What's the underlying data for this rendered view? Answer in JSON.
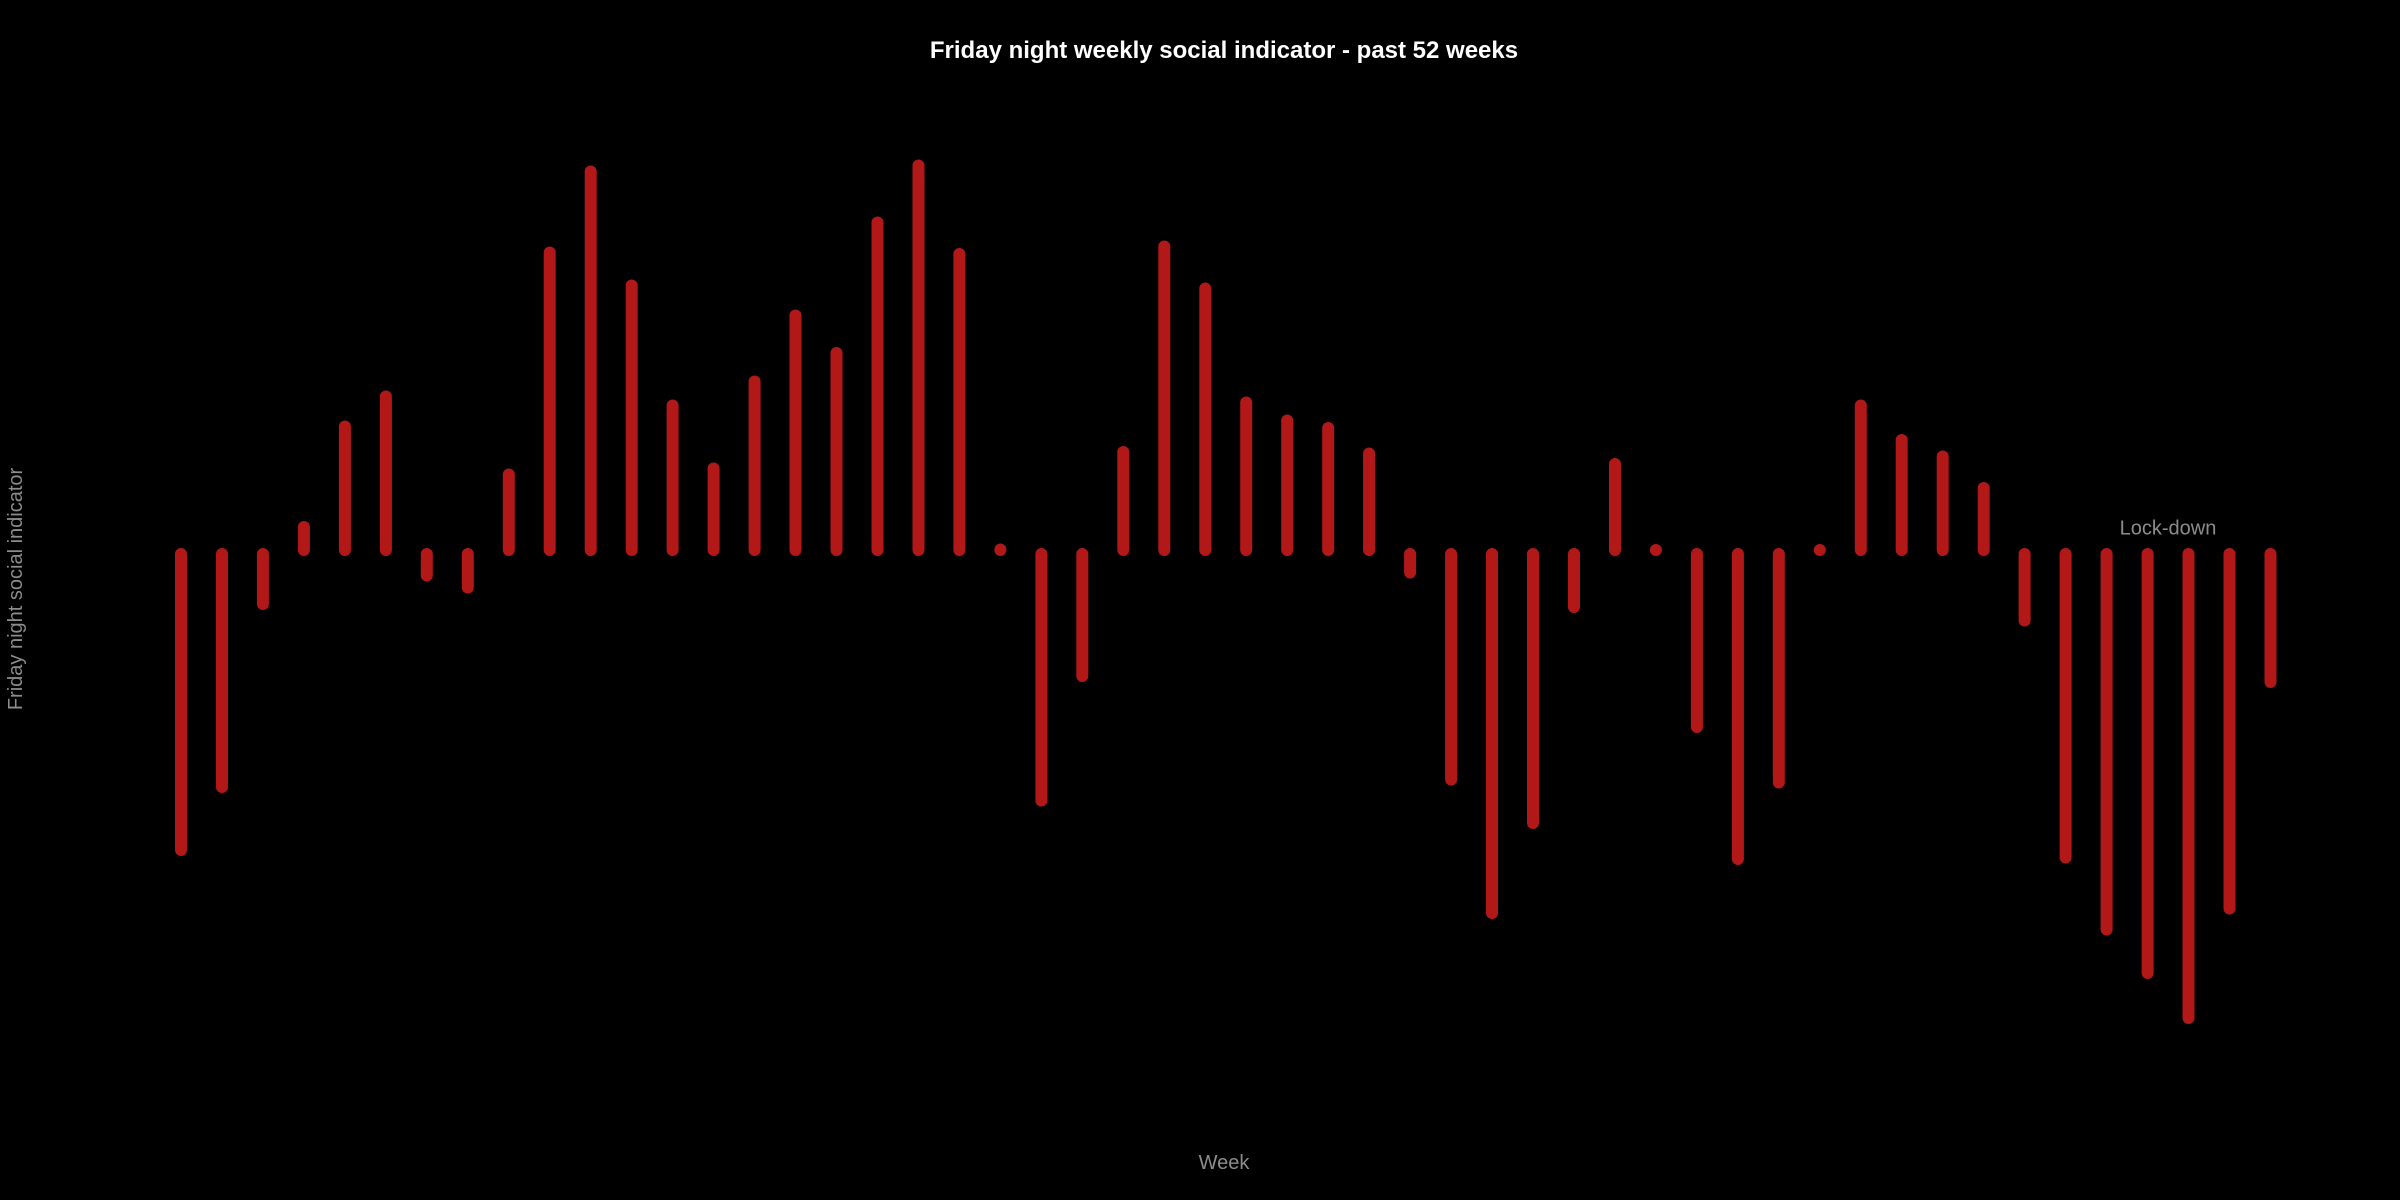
{
  "chart_data": {
    "type": "bar",
    "title": "Friday night weekly social indicator - past 52 weeks",
    "xlabel": "Week",
    "ylabel": "Friday night social indicator",
    "ylim": [
      -330,
      280
    ],
    "grid": false,
    "x": [
      1,
      2,
      3,
      4,
      5,
      6,
      7,
      8,
      9,
      10,
      11,
      12,
      13,
      14,
      15,
      16,
      17,
      18,
      19,
      20,
      21,
      22,
      23,
      24,
      25,
      26,
      27,
      28,
      29,
      30,
      31,
      32,
      33,
      34,
      35,
      36,
      37,
      38,
      39,
      40,
      41,
      42,
      43,
      44,
      45,
      46,
      47,
      48,
      49,
      50,
      51,
      52
    ],
    "values": [
      -200,
      -158,
      -36,
      18,
      85,
      105,
      -17,
      -25,
      53,
      201,
      255,
      179,
      99,
      57,
      115,
      159,
      134,
      221,
      259,
      200,
      3,
      -167,
      -84,
      68,
      205,
      177,
      101,
      89,
      84,
      67,
      -15,
      -153,
      -242,
      -182,
      -38,
      60,
      2,
      -118,
      -206,
      -155,
      2,
      99,
      76,
      65,
      44,
      -47,
      -205,
      -253,
      -282,
      -312,
      -239,
      -88
    ],
    "series_color": "#b21818",
    "annotations": [
      {
        "text": "Lock-down",
        "x": 49.5,
        "y": 17
      }
    ]
  },
  "colors": {
    "background": "#000000",
    "title": "#ffffff",
    "axis_text": "#8c8c8c"
  }
}
